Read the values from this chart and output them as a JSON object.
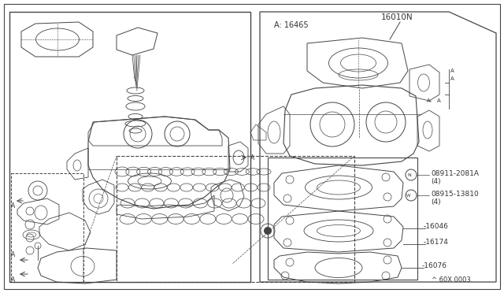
{
  "bg_color": "#f0f0ee",
  "line_color": "#444444",
  "text_color": "#333333",
  "white": "#ffffff",
  "labels": {
    "main_part": "16010N",
    "sub_a": "A: 16465",
    "part_n_circ": "N",
    "part_n_text": "08911-2081A",
    "part_n2": "(4)",
    "part_w_circ": "W",
    "part_w_text": "08915-13810",
    "part_w2": "(4)",
    "part_16046": "-16046",
    "part_16174": "-16174",
    "part_16076": "-16076",
    "part_60x": "^ 60X 0003"
  }
}
